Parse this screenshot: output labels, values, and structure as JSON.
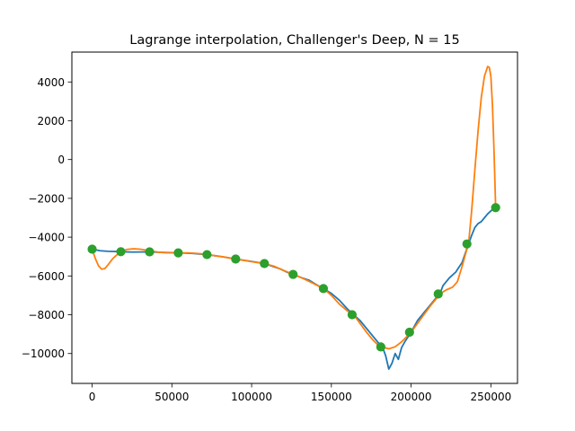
{
  "chart_data": {
    "type": "line",
    "title": "Lagrange interpolation, Challenger's Deep, N = 15",
    "xlabel": "",
    "ylabel": "",
    "xlim": [
      -12700,
      266700
    ],
    "ylim": [
      -11540,
      5540
    ],
    "x_ticks": [
      0,
      50000,
      100000,
      150000,
      200000,
      250000
    ],
    "x_tick_labels": [
      "0",
      "50000",
      "100000",
      "150000",
      "200000",
      "250000"
    ],
    "y_ticks": [
      -10000,
      -8000,
      -6000,
      -4000,
      -2000,
      0,
      2000,
      4000
    ],
    "y_tick_labels": [
      "−10000",
      "−8000",
      "−6000",
      "−4000",
      "−2000",
      "0",
      "2000",
      "4000"
    ],
    "grid": false,
    "series": [
      {
        "role": "profile",
        "color": "#1f77b4",
        "points": [
          [
            0,
            -4620
          ],
          [
            5000,
            -4700
          ],
          [
            10000,
            -4730
          ],
          [
            18000,
            -4750
          ],
          [
            25000,
            -4770
          ],
          [
            36000,
            -4760
          ],
          [
            45000,
            -4790
          ],
          [
            54000,
            -4810
          ],
          [
            63000,
            -4840
          ],
          [
            72000,
            -4900
          ],
          [
            81000,
            -5000
          ],
          [
            90000,
            -5130
          ],
          [
            99000,
            -5240
          ],
          [
            108000,
            -5360
          ],
          [
            113000,
            -5500
          ],
          [
            118000,
            -5640
          ],
          [
            122000,
            -5800
          ],
          [
            126000,
            -5920
          ],
          [
            131000,
            -6080
          ],
          [
            136000,
            -6220
          ],
          [
            140000,
            -6420
          ],
          [
            145000,
            -6650
          ],
          [
            150000,
            -6900
          ],
          [
            155000,
            -7250
          ],
          [
            160000,
            -7700
          ],
          [
            164000,
            -8000
          ],
          [
            168000,
            -8300
          ],
          [
            172000,
            -8700
          ],
          [
            176000,
            -9100
          ],
          [
            180000,
            -9500
          ],
          [
            182000,
            -9660
          ],
          [
            184000,
            -10100
          ],
          [
            186000,
            -10800
          ],
          [
            188000,
            -10500
          ],
          [
            190000,
            -10000
          ],
          [
            192000,
            -10300
          ],
          [
            194000,
            -9700
          ],
          [
            196000,
            -9400
          ],
          [
            200000,
            -8900
          ],
          [
            204000,
            -8300
          ],
          [
            208000,
            -7900
          ],
          [
            212000,
            -7500
          ],
          [
            216000,
            -7100
          ],
          [
            218000,
            -6930
          ],
          [
            220000,
            -6500
          ],
          [
            224000,
            -6100
          ],
          [
            228000,
            -5800
          ],
          [
            232000,
            -5300
          ],
          [
            236000,
            -4350
          ],
          [
            238000,
            -3900
          ],
          [
            240000,
            -3500
          ],
          [
            242000,
            -3300
          ],
          [
            244000,
            -3200
          ],
          [
            246000,
            -3000
          ],
          [
            248000,
            -2800
          ],
          [
            250000,
            -2650
          ],
          [
            252000,
            -2500
          ],
          [
            253000,
            -2480
          ]
        ]
      },
      {
        "role": "interpolant",
        "color": "#ff7f0e",
        "points": [
          [
            0,
            -4620
          ],
          [
            2000,
            -5100
          ],
          [
            4000,
            -5480
          ],
          [
            6000,
            -5650
          ],
          [
            8000,
            -5620
          ],
          [
            10000,
            -5420
          ],
          [
            13000,
            -5100
          ],
          [
            16000,
            -4880
          ],
          [
            18000,
            -4750
          ],
          [
            22000,
            -4630
          ],
          [
            26000,
            -4600
          ],
          [
            30000,
            -4620
          ],
          [
            36000,
            -4700
          ],
          [
            42000,
            -4780
          ],
          [
            48000,
            -4810
          ],
          [
            54000,
            -4810
          ],
          [
            60000,
            -4810
          ],
          [
            66000,
            -4840
          ],
          [
            72000,
            -4890
          ],
          [
            78000,
            -4970
          ],
          [
            84000,
            -5040
          ],
          [
            90000,
            -5130
          ],
          [
            96000,
            -5210
          ],
          [
            102000,
            -5290
          ],
          [
            108000,
            -5360
          ],
          [
            114000,
            -5500
          ],
          [
            120000,
            -5710
          ],
          [
            126000,
            -5920
          ],
          [
            132000,
            -6120
          ],
          [
            138000,
            -6360
          ],
          [
            145000,
            -6650
          ],
          [
            150000,
            -7000
          ],
          [
            155000,
            -7450
          ],
          [
            160000,
            -7800
          ],
          [
            164000,
            -8000
          ],
          [
            168000,
            -8450
          ],
          [
            172000,
            -8900
          ],
          [
            176000,
            -9300
          ],
          [
            180000,
            -9620
          ],
          [
            182000,
            -9660
          ],
          [
            186000,
            -9760
          ],
          [
            190000,
            -9650
          ],
          [
            194000,
            -9400
          ],
          [
            197000,
            -9150
          ],
          [
            200000,
            -8900
          ],
          [
            204000,
            -8450
          ],
          [
            208000,
            -8000
          ],
          [
            212000,
            -7550
          ],
          [
            216000,
            -7150
          ],
          [
            218000,
            -6930
          ],
          [
            222000,
            -6720
          ],
          [
            226000,
            -6580
          ],
          [
            229000,
            -6300
          ],
          [
            232000,
            -5500
          ],
          [
            234000,
            -4900
          ],
          [
            236000,
            -4350
          ],
          [
            238000,
            -2600
          ],
          [
            240000,
            -500
          ],
          [
            242000,
            1500
          ],
          [
            244000,
            3200
          ],
          [
            246000,
            4300
          ],
          [
            248000,
            4800
          ],
          [
            249000,
            4750
          ],
          [
            250000,
            4300
          ],
          [
            251000,
            2800
          ],
          [
            252000,
            400
          ],
          [
            253000,
            -2480
          ]
        ]
      },
      {
        "role": "nodes",
        "color": "#2ca02c",
        "points": [
          [
            0,
            -4620
          ],
          [
            18000,
            -4750
          ],
          [
            36000,
            -4760
          ],
          [
            54000,
            -4810
          ],
          [
            72000,
            -4900
          ],
          [
            90000,
            -5130
          ],
          [
            108000,
            -5360
          ],
          [
            126000,
            -5920
          ],
          [
            145000,
            -6650
          ],
          [
            163000,
            -8000
          ],
          [
            181000,
            -9660
          ],
          [
            199000,
            -8900
          ],
          [
            217000,
            -6930
          ],
          [
            235000,
            -4350
          ],
          [
            253000,
            -2480
          ]
        ]
      }
    ]
  }
}
